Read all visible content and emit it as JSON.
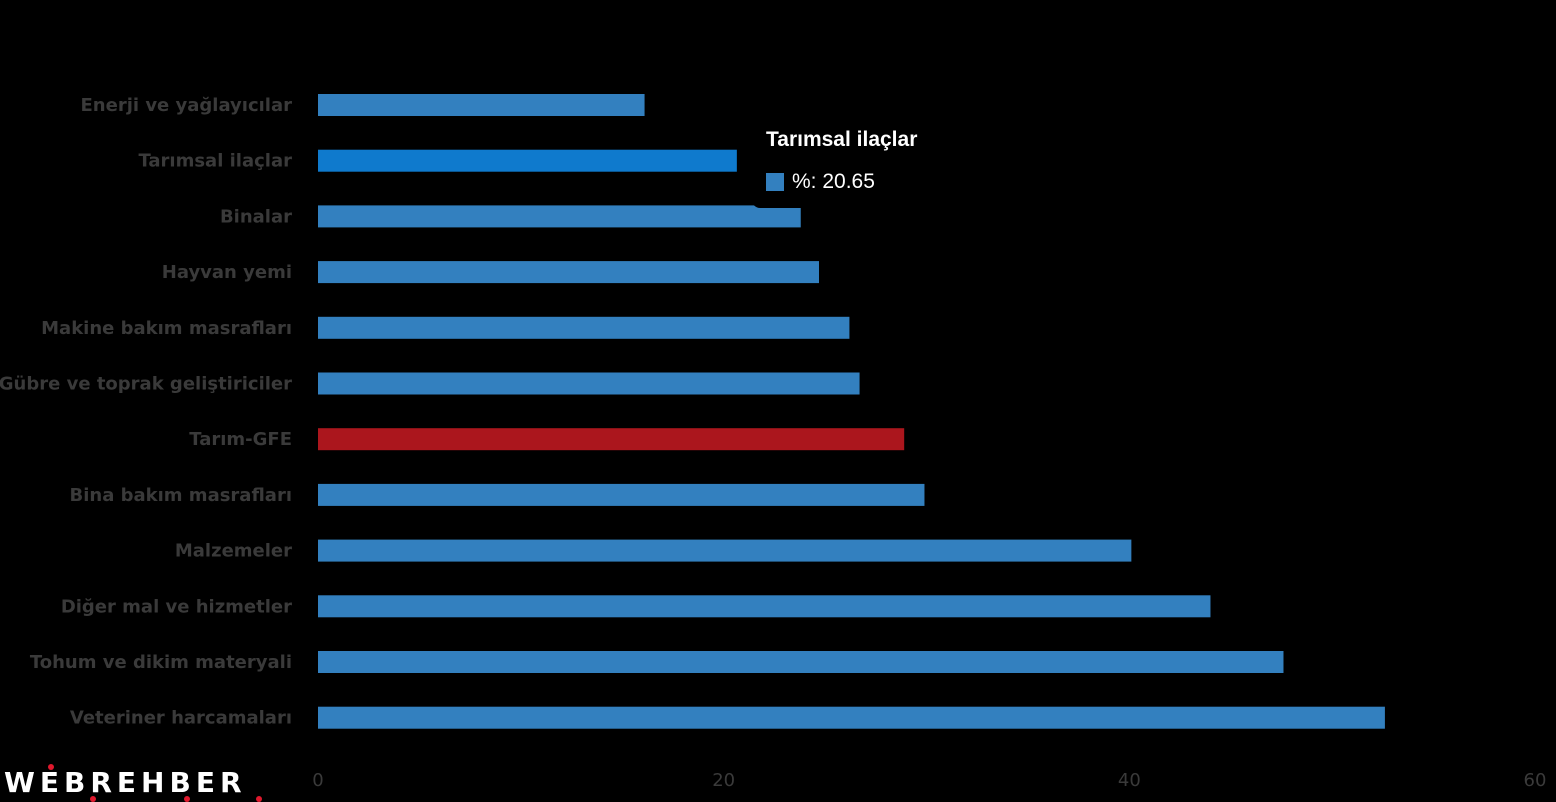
{
  "chart_data": {
    "type": "bar",
    "orientation": "horizontal",
    "categories": [
      "Enerji  ve yağlayıcılar",
      "Tarımsal ilaçlar",
      "Binalar",
      "Hayvan yemi",
      "Makine bakım masrafları",
      "Gübre ve toprak geliştiriciler",
      "Tarım-GFE",
      "Bina bakım masrafları",
      "Malzemeler",
      "Diğer mal ve hizmetler",
      "Tohum ve dikim materyali",
      "Veteriner harcamaları"
    ],
    "series": [
      {
        "name": "%",
        "values": [
          16.1,
          20.65,
          23.8,
          24.7,
          26.2,
          26.7,
          28.9,
          29.9,
          40.1,
          44.0,
          47.6,
          52.6
        ]
      }
    ],
    "xlim": [
      0,
      60
    ],
    "xticks": [
      "0",
      "20",
      "40",
      "60"
    ],
    "grid": false,
    "colors": {
      "default": "#3380bf",
      "hovered": "#0f7acd",
      "highlight": "#ab161d"
    },
    "highlight_category": "Tarım-GFE",
    "hovered_category": "Tarımsal ilaçlar",
    "tooltip": {
      "title": "Tarımsal ilaçlar",
      "text": "%: 20.65"
    }
  },
  "logo": {
    "text": "WEBREHBER"
  }
}
